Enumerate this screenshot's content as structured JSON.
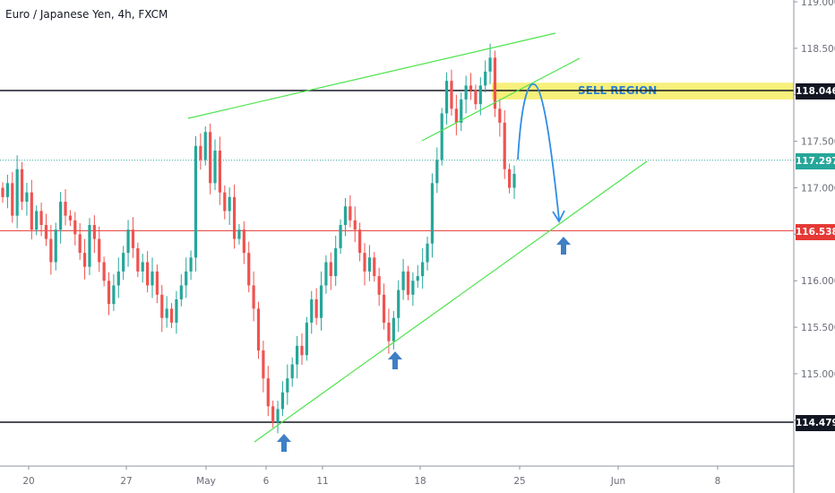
{
  "title": "Euro / Japanese Yen, 4h, FXCM",
  "chart_data": {
    "type": "candlestick",
    "symbol": "EURJPY",
    "timeframe": "4h",
    "source": "FXCM",
    "ylim": [
      114.0,
      119.05
    ],
    "y_ticks": [
      "114.500",
      "115.000",
      "115.500",
      "116.000",
      "116.500",
      "117.000",
      "117.500",
      "118.000",
      "118.500",
      "119.000"
    ],
    "x_ticks": [
      "20",
      "27",
      "May",
      "6",
      "11",
      "18",
      "25",
      "Jun",
      "8"
    ],
    "levels": [
      {
        "label": "118.046",
        "value": 118.046,
        "color": "#131722",
        "style": "solid"
      },
      {
        "label": "117.297",
        "value": 117.297,
        "color": "#26a69a",
        "style": "dotted"
      },
      {
        "label": "116.538",
        "value": 116.538,
        "color": "#e53935",
        "style": "solid"
      },
      {
        "label": "114.479",
        "value": 114.479,
        "color": "#131722",
        "style": "solid"
      }
    ],
    "annotations": [
      {
        "type": "zone",
        "text": "SELL REGION",
        "from": 117.95,
        "to": 118.13,
        "color": "#f7f07a"
      },
      {
        "type": "trendline",
        "name": "upper-channel",
        "color": "#4ce34c"
      },
      {
        "type": "trendline",
        "name": "support",
        "color": "#4ce34c"
      },
      {
        "type": "curve-arrow",
        "color": "#2f8de4"
      },
      {
        "type": "up-arrows",
        "count": 3,
        "color": "#3f7fc4"
      }
    ],
    "series": [
      {
        "closes": [
          116.9,
          117.05,
          116.7,
          117.2,
          116.85,
          116.95,
          116.55,
          116.75,
          116.6,
          116.45,
          116.2,
          116.55,
          116.85,
          116.7,
          116.65,
          116.5,
          116.3,
          116.15,
          116.6,
          116.45,
          116.2,
          116.0,
          115.75,
          115.95,
          116.1,
          116.3,
          116.55,
          116.35,
          116.1,
          116.2,
          115.95,
          116.1,
          115.85,
          115.6,
          115.7,
          115.55,
          115.8,
          115.95,
          116.1,
          116.25,
          117.45,
          117.3,
          117.6,
          117.05,
          117.4,
          116.95,
          116.75,
          116.9,
          116.45,
          116.55,
          116.3,
          115.95,
          115.7,
          115.25,
          114.95,
          114.65,
          114.48,
          114.62,
          114.8,
          114.95,
          115.1,
          115.3,
          115.2,
          115.55,
          115.8,
          115.6,
          115.95,
          116.2,
          116.05,
          116.35,
          116.6,
          116.8,
          116.65,
          116.55,
          116.3,
          116.1,
          116.25,
          116.05,
          115.85,
          115.55,
          115.35,
          115.6,
          115.9,
          116.1,
          115.85,
          116.0,
          116.05,
          116.2,
          116.4,
          117.05,
          117.3,
          117.8,
          118.15,
          117.85,
          117.7,
          117.95,
          118.1,
          118.05,
          117.9,
          118.1,
          118.25,
          118.4,
          117.85,
          117.7,
          117.2,
          117.0,
          117.15
        ]
      }
    ]
  }
}
